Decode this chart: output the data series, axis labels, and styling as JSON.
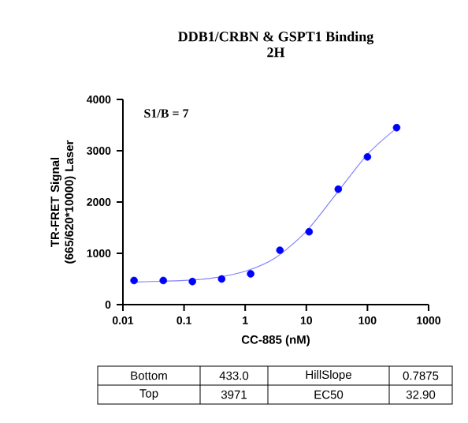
{
  "chart_data": {
    "type": "scatter",
    "title": "DDB1/CRBN & GSPT1 Binding",
    "subtitle": "2H",
    "xlabel": "CC-885 (nM)",
    "ylabel": "TR-FRET Signal (665/620*10000) Laser",
    "log": "x",
    "xlim": [
      0.01,
      1000
    ],
    "xticks": [
      0.01,
      0.1,
      1,
      10,
      100,
      1000
    ],
    "ylim": [
      0,
      4000
    ],
    "yticks": [
      0,
      1000,
      2000,
      3000,
      4000
    ],
    "grid": false,
    "series": [
      {
        "color": "#0000ff",
        "marker": "circle",
        "x": [
          0.0152,
          0.0457,
          0.137,
          0.412,
          1.23,
          3.7,
          11.1,
          33.3,
          100,
          300
        ],
        "values": [
          470,
          470,
          450,
          500,
          600,
          1060,
          1420,
          2250,
          2880,
          3450
        ]
      },
      {
        "type": "line",
        "color": "#8080ff",
        "marker": "none",
        "x": [
          0.015,
          0.03,
          0.1,
          0.3,
          1,
          3,
          10,
          30,
          100,
          300
        ],
        "values": [
          440,
          450,
          470,
          520,
          650,
          900,
          1430,
          2140,
          2930,
          3440
        ]
      }
    ],
    "annotations": [
      "S1/B = 7",
      "Bottom",
      "433.0",
      "HillSlope",
      "0.7875",
      "Top",
      "3971",
      "EC50",
      "32.90"
    ]
  }
}
